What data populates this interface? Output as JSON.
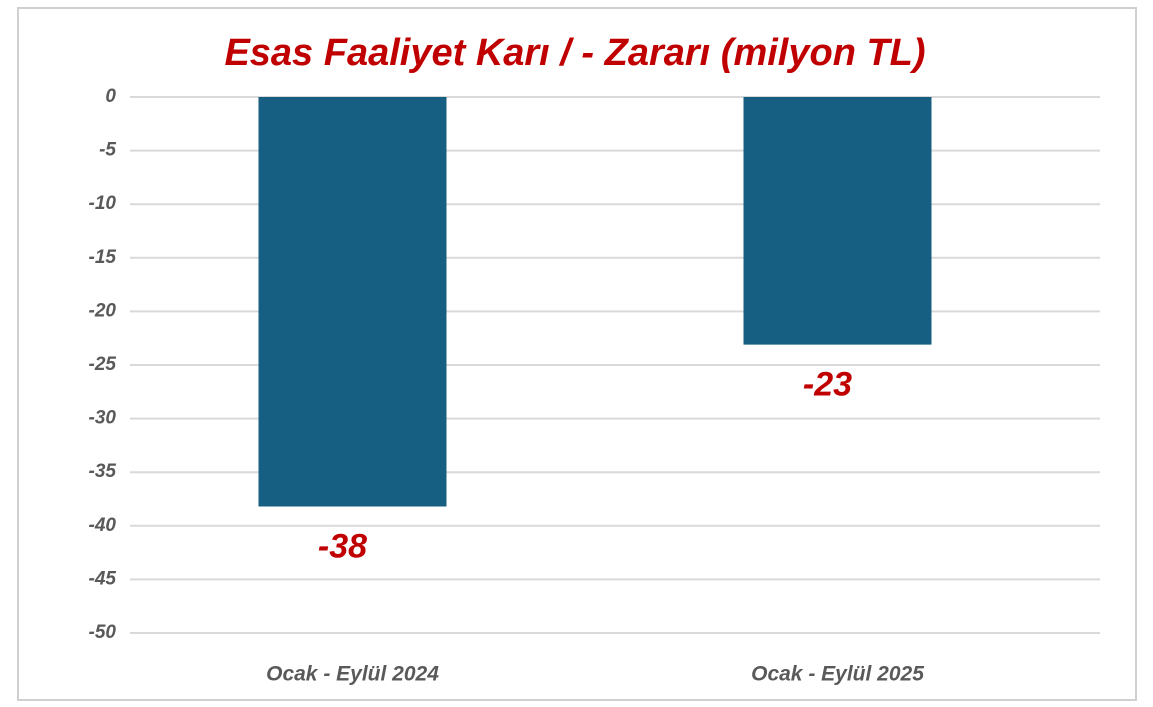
{
  "chart_data": {
    "type": "bar",
    "title": "Esas Faaliyet Karı / - Zararı (milyon TL)",
    "categories": [
      "Ocak - Eylül 2024",
      "Ocak - Eylül 2025"
    ],
    "values": [
      -38.2,
      -23.1
    ],
    "value_labels": [
      "-38",
      "-23"
    ],
    "color": "#175f82",
    "ylim": [
      -50,
      0
    ],
    "yticks": [
      0,
      -5,
      -10,
      -15,
      -20,
      -25,
      -30,
      -35,
      -40,
      -45,
      -50
    ],
    "grid": true
  }
}
